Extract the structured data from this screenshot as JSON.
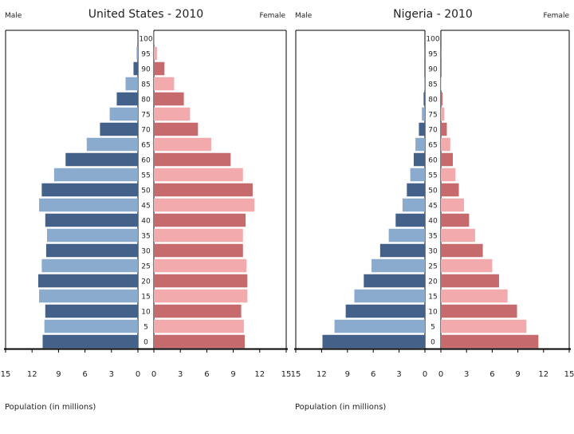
{
  "chart_data": [
    {
      "type": "bar",
      "title": "United States - 2010",
      "left_label": "Male",
      "right_label": "Female",
      "xlabel": "Population (in millions)",
      "xlim": [
        0,
        15
      ],
      "xticks": [
        "15",
        "12",
        "9",
        "6",
        "3",
        "0",
        "0",
        "3",
        "6",
        "9",
        "12",
        "15"
      ],
      "categories": [
        "0",
        "5",
        "10",
        "15",
        "20",
        "25",
        "30",
        "35",
        "40",
        "45",
        "50",
        "55",
        "60",
        "65",
        "70",
        "75",
        "80",
        "85",
        "90",
        "95",
        "100"
      ],
      "series": [
        {
          "name": "Male",
          "color_dark": "#44618a",
          "color_light": "#8aaace",
          "values": [
            10.8,
            10.6,
            10.5,
            11.2,
            11.3,
            10.9,
            10.4,
            10.3,
            10.5,
            11.2,
            10.9,
            9.5,
            8.2,
            5.8,
            4.3,
            3.2,
            2.4,
            1.4,
            0.5,
            0.15,
            0.02
          ]
        },
        {
          "name": "Female",
          "color_dark": "#c76a6d",
          "color_light": "#f2aaac",
          "values": [
            10.3,
            10.2,
            9.9,
            10.6,
            10.6,
            10.5,
            10.1,
            10.1,
            10.4,
            11.4,
            11.2,
            10.1,
            8.7,
            6.5,
            5.0,
            4.1,
            3.4,
            2.3,
            1.2,
            0.35,
            0.05
          ]
        }
      ]
    },
    {
      "type": "bar",
      "title": "Nigeria - 2010",
      "left_label": "Male",
      "right_label": "Female",
      "xlabel": "Population (in millions)",
      "xlim": [
        0,
        15
      ],
      "xticks": [
        "15",
        "12",
        "9",
        "6",
        "3",
        "0",
        "0",
        "3",
        "6",
        "9",
        "12",
        "15"
      ],
      "categories": [
        "0",
        "5",
        "10",
        "15",
        "20",
        "25",
        "30",
        "35",
        "40",
        "45",
        "50",
        "55",
        "60",
        "65",
        "70",
        "75",
        "80",
        "85",
        "90",
        "95",
        "100"
      ],
      "series": [
        {
          "name": "Male",
          "color_dark": "#44618a",
          "color_light": "#8aaace",
          "values": [
            11.9,
            10.5,
            9.2,
            8.2,
            7.1,
            6.2,
            5.2,
            4.2,
            3.4,
            2.6,
            2.1,
            1.7,
            1.3,
            1.1,
            0.7,
            0.35,
            0.15,
            0.03,
            0.01,
            0.01,
            0.0
          ]
        },
        {
          "name": "Female",
          "color_dark": "#c76a6d",
          "color_light": "#f2aaac",
          "values": [
            11.4,
            10.0,
            8.9,
            7.8,
            6.8,
            6.0,
            4.9,
            4.0,
            3.3,
            2.7,
            2.1,
            1.7,
            1.4,
            1.1,
            0.7,
            0.4,
            0.2,
            0.05,
            0.01,
            0.01,
            0.0
          ]
        }
      ]
    }
  ]
}
